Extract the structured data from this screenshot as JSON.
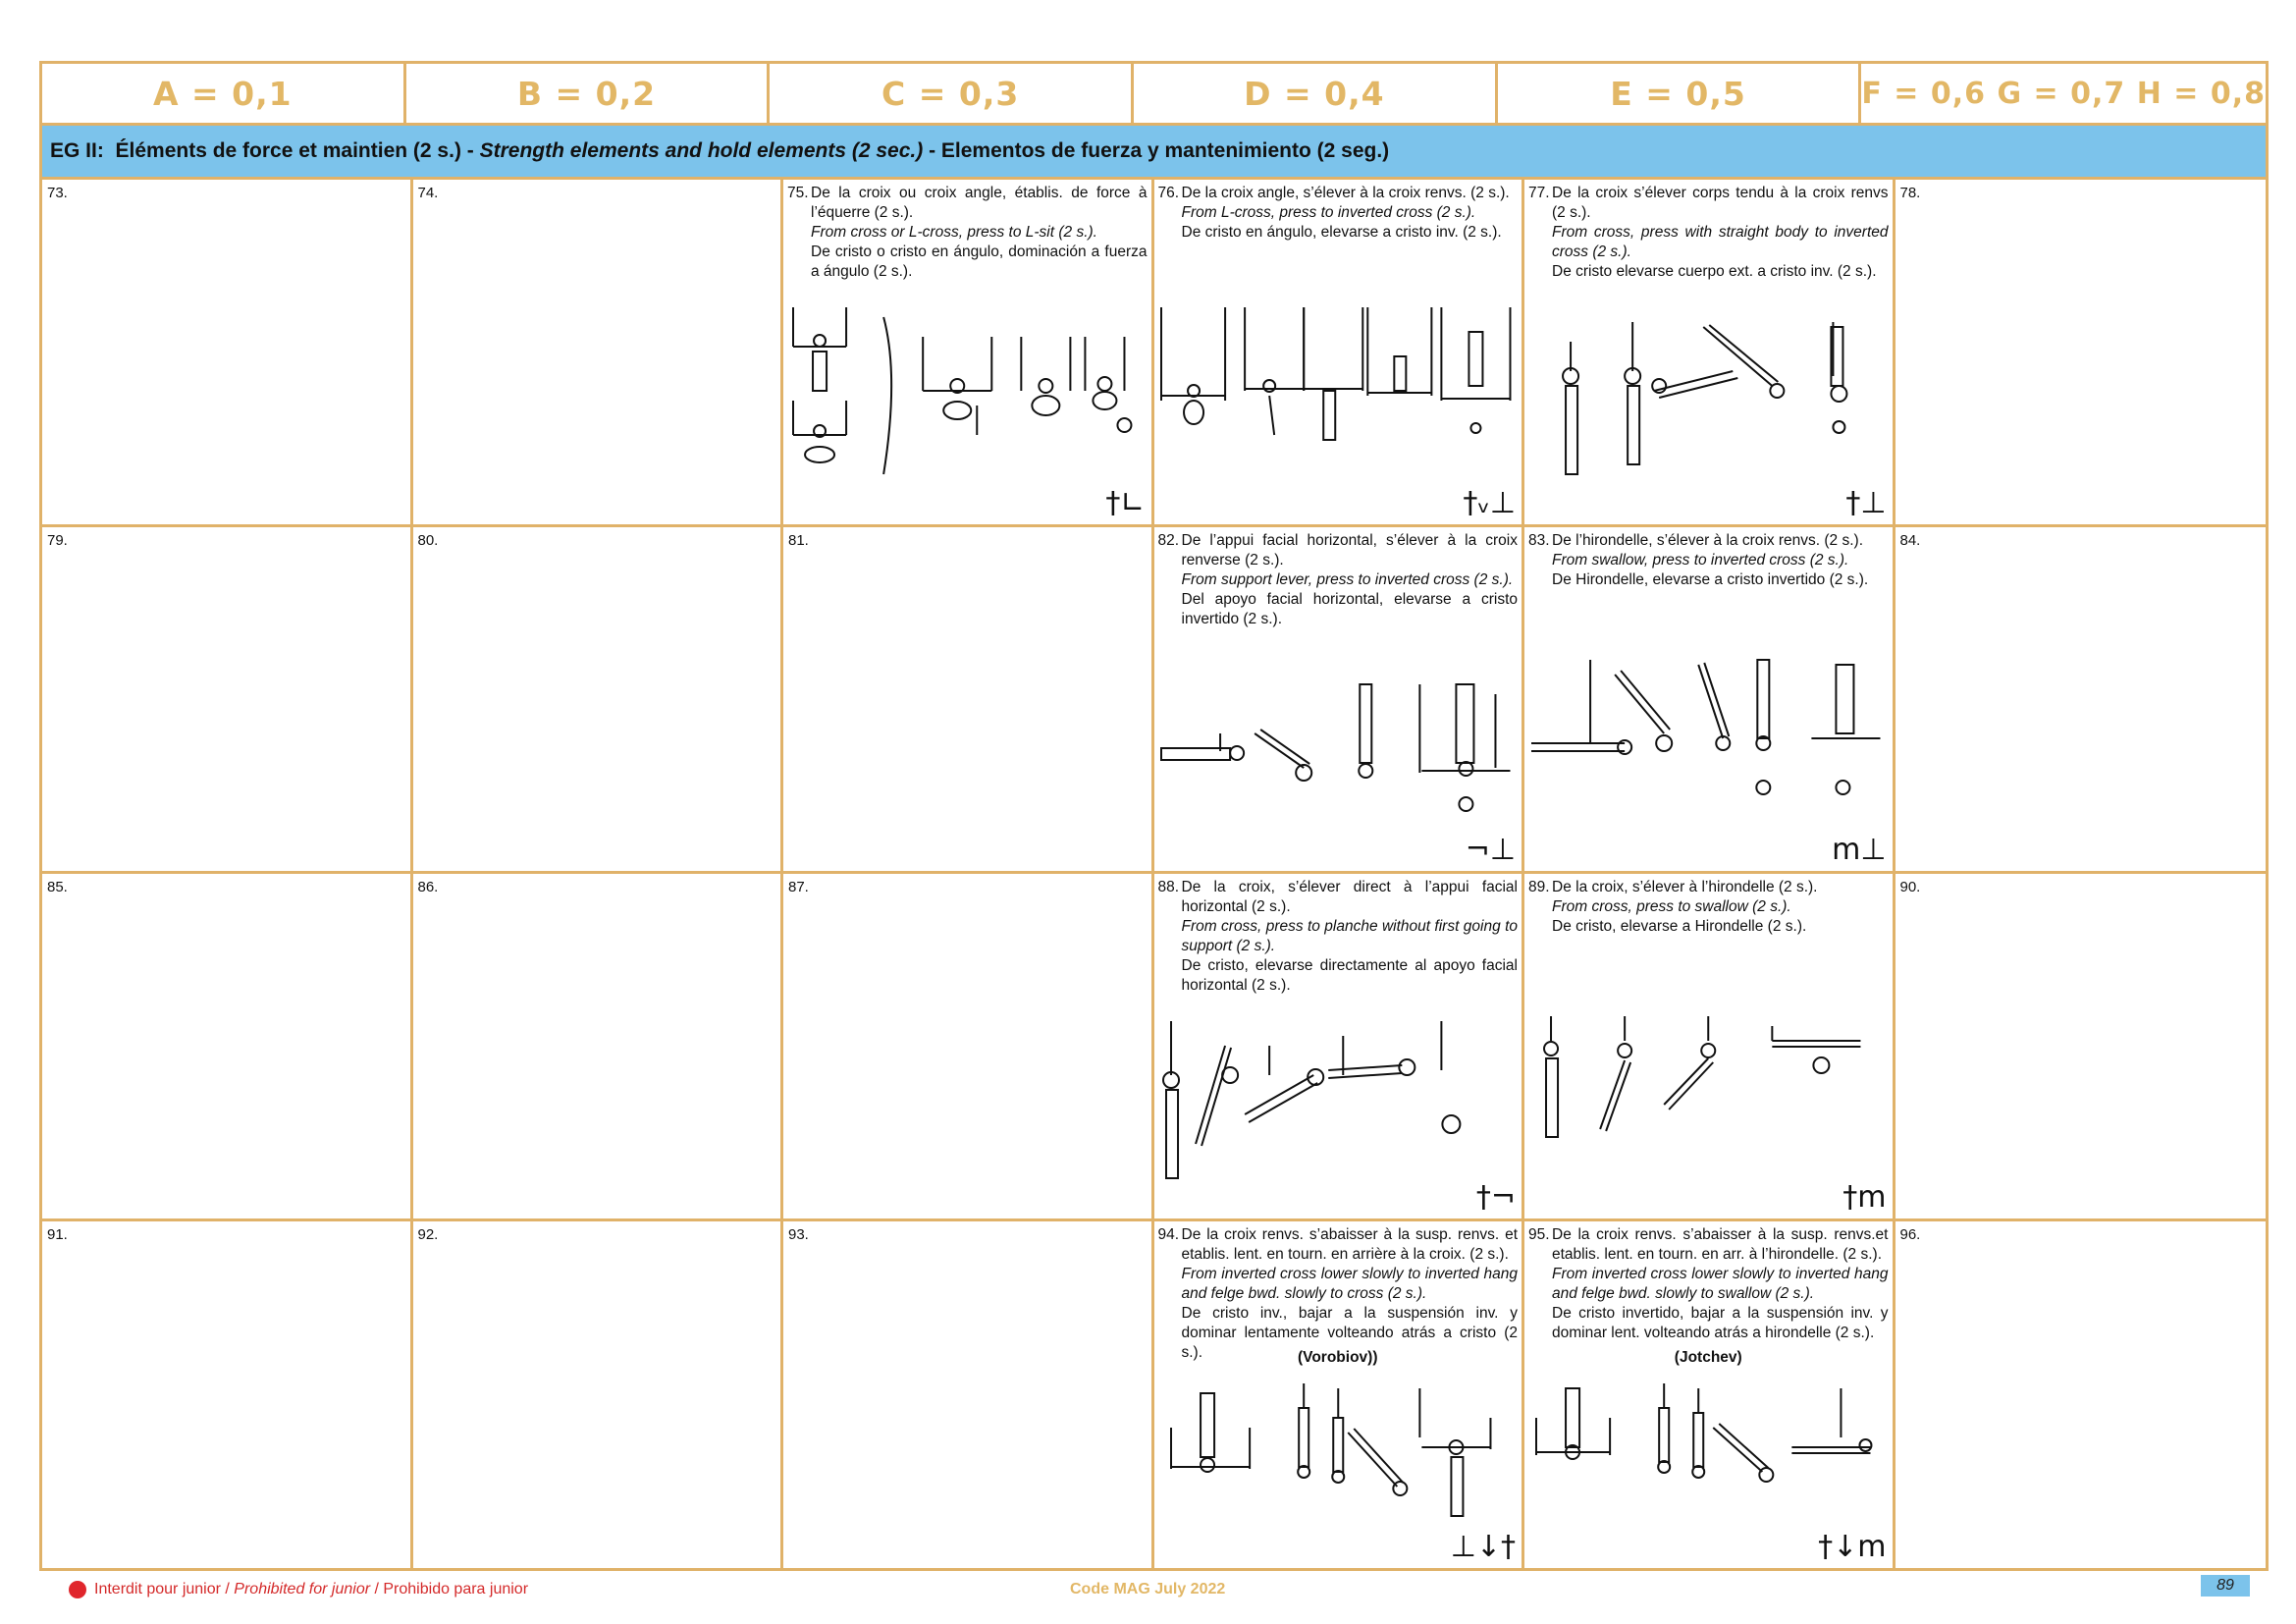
{
  "header": {
    "col_a": "A = 0,1",
    "col_b": "B = 0,2",
    "col_c": "C = 0,3",
    "col_d": "D = 0,4",
    "col_e": "E = 0,5",
    "col_f": "F = 0,6 G = 0,7 H = 0,8"
  },
  "group": {
    "prefix": "EG II:  Éléments de force et maintien (2 s.) - ",
    "english": "Strength elements and hold elements (2 sec.)",
    "spanish": " - Elementos de fuerza y mantenimiento (2 seg.)"
  },
  "cells": {
    "c73": "73.",
    "c74": "74.",
    "c78": "78.",
    "c79": "79.",
    "c80": "80.",
    "c81": "81.",
    "c84": "84.",
    "c85": "85.",
    "c86": "86.",
    "c87": "87.",
    "c90": "90.",
    "c91": "91.",
    "c92": "92.",
    "c93": "93.",
    "c96": "96."
  },
  "elements": {
    "e75": {
      "num": "75.",
      "fr": "De la croix ou croix angle, établis. de force à l’équerre (2 s.).",
      "en": "From cross or L-cross, press to L-sit (2 s.).",
      "es": "De cristo o cristo en ángulo, dominación a fuerza a ángulo (2 s.).",
      "symbol": "†∟"
    },
    "e76": {
      "num": "76.",
      "fr": "De la croix angle, s’élever à la croix renvs. (2 s.).",
      "en": "From L-cross, press to inverted cross (2 s.).",
      "es": "De cristo en ángulo, elevarse a cristo inv. (2 s.).",
      "symbol": "†ᵥ⊥"
    },
    "e77": {
      "num": "77.",
      "fr": "De la croix s’élever corps tendu à la croix renvs (2 s.).",
      "en": "From cross, press with straight body to inverted cross (2 s.).",
      "es": "De cristo elevarse cuerpo ext. a cristo inv. (2 s.).",
      "symbol": "†⊥"
    },
    "e82": {
      "num": "82.",
      "fr": "De l’appui facial horizontal, s’élever à la croix renverse (2 s.).",
      "en": "From support lever, press to  inverted cross (2 s.).",
      "es": "Del apoyo facial horizontal, elevarse a cristo invertido (2 s.).",
      "symbol": "¬⊥"
    },
    "e83": {
      "num": "83.",
      "fr": "De l’hirondelle, s’élever à la croix renvs. (2 s.).",
      "en": "From swallow, press to inverted cross (2 s.).",
      "es": "De Hirondelle, elevarse a cristo invertido (2 s.).",
      "symbol": "m⊥"
    },
    "e88": {
      "num": "88.",
      "fr": "De la croix, s’élever direct à l’appui facial horizontal (2 s.).",
      "en": "From cross, press to planche without first going to support (2 s.).",
      "es": "De cristo, elevarse directamente al apoyo facial horizontal (2 s.).",
      "symbol": "†¬"
    },
    "e89": {
      "num": "89.",
      "fr": "De la croix, s’élever à l’hirondelle (2 s.).",
      "en": "From cross, press to swallow (2 s.).",
      "es": "De cristo, elevarse a Hirondelle (2 s.).",
      "symbol": "†m"
    },
    "e94": {
      "num": "94.",
      "fr": "De la croix renvs. s’abaisser à la susp. renvs. et etablis. lent. en tourn. en arrière à la croix. (2 s.).",
      "en": "From inverted cross lower slowly to inverted hang and felge bwd. slowly to cross (2 s.).",
      "es": "De cristo inv., bajar a la suspensión inv. y dominar lentamente volteando atrás a cristo (2 s.).",
      "name": "(Vorobiov))",
      "symbol": "⊥↓†"
    },
    "e95": {
      "num": "95.",
      "fr": "De la croix renvs. s’abaisser à la susp. renvs.et etablis. lent. en tourn. en arr. à l’hirondelle. (2 s.).",
      "en": "From inverted cross lower slowly to inverted hang and felge bwd. slowly to swallow (2 s.).",
      "es": "De cristo invertido, bajar a la suspensión inv. y dominar lent. volteando atrás a hirondelle (2 s.).",
      "name": "(Jotchev)",
      "symbol": "†↓m"
    }
  },
  "footer": {
    "junior_fr": "Interdit pour junior / ",
    "junior_en": "Prohibited for junior",
    "junior_es": " / Prohibido para junior",
    "code": "Code MAG July 2022",
    "page": "89"
  },
  "colors": {
    "accent": "#e2b766",
    "border": "#e0b269",
    "band": "#7cc3eb",
    "junior_red": "#e0262c"
  }
}
